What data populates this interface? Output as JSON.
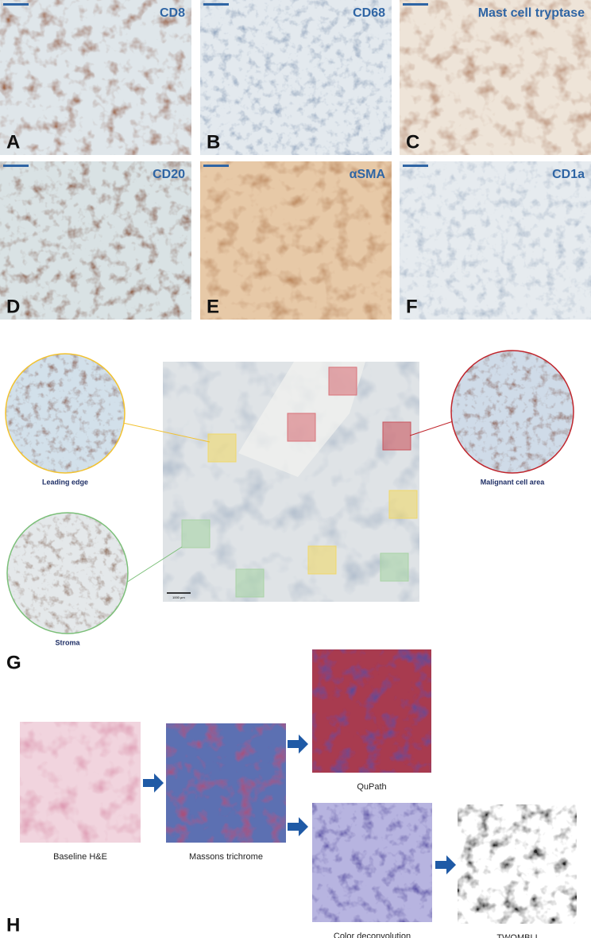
{
  "panels": [
    {
      "letter": "A",
      "stain": "CD8"
    },
    {
      "letter": "B",
      "stain": "CD68"
    },
    {
      "letter": "C",
      "stain": "Mast cell tryptase"
    },
    {
      "letter": "D",
      "stain": "CD20"
    },
    {
      "letter": "E",
      "stain": "αSMA"
    },
    {
      "letter": "F",
      "stain": "CD1a"
    }
  ],
  "regions": {
    "leading_edge": "Leading edge",
    "malignant": "Malignant cell area",
    "stroma": "Stroma",
    "scale_bar": "1000 µm",
    "letter": "G"
  },
  "workflow": {
    "letter": "H",
    "steps": [
      "Baseline H&E",
      "Massons trichrome",
      "QuPath",
      "Color deconvolution",
      "TWOMBLI"
    ]
  }
}
